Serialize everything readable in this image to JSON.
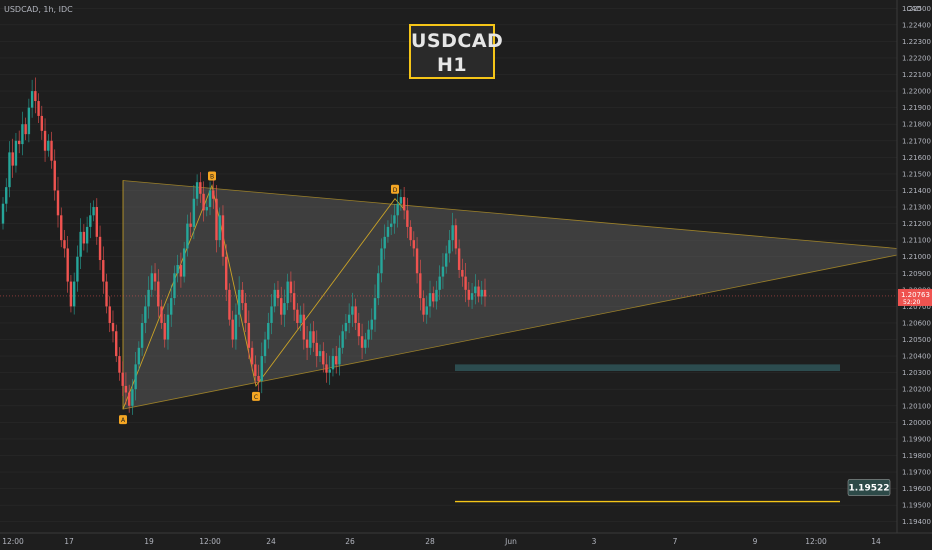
{
  "header": {
    "symbol_info": "USDCAD, 1h, IDC"
  },
  "title_box": {
    "line1": "USDCAD",
    "line2": "H1"
  },
  "colors": {
    "background": "#1e1e1e",
    "bull_candle": "#26a69a",
    "bear_candle": "#ef5350",
    "triangle_fill": "#5a5a5a",
    "pattern_line": "#c9a227",
    "label_badge": "#f5a623",
    "target_line": "#f5c518",
    "zone": "#2f5558",
    "price_badge": "#ef5350",
    "target_badge": "#2d4a48"
  },
  "chart_data": {
    "type": "candlestick",
    "symbol": "USDCAD",
    "timeframe": "1h",
    "source": "IDC",
    "currency": "CAD",
    "y_range": [
      1.1935,
      1.2255
    ],
    "y_ticks": [
      "1.19400",
      "1.19500",
      "1.19600",
      "1.19700",
      "1.19800",
      "1.19900",
      "1.20000",
      "1.20100",
      "1.20200",
      "1.20300",
      "1.20400",
      "1.20500",
      "1.20600",
      "1.20700",
      "1.20800",
      "1.20900",
      "1.21000",
      "1.21100",
      "1.21200",
      "1.21300",
      "1.21400",
      "1.21500",
      "1.21600",
      "1.21700",
      "1.21800",
      "1.21900",
      "1.22000",
      "1.22100",
      "1.22200",
      "1.22300",
      "1.22400",
      "1.22500"
    ],
    "x_ticks": [
      "12:00",
      "17",
      "19",
      "12:00",
      "24",
      "26",
      "28",
      "Jun",
      "3",
      "7",
      "9",
      "12:00",
      "14"
    ],
    "current_price": {
      "value": "1.20763",
      "countdown": "52:20"
    },
    "target": {
      "value": "1.19522"
    },
    "support_zone": {
      "from": 1.2031,
      "to": 1.2035
    },
    "pattern_points": [
      {
        "label": "A",
        "price": 1.2008
      },
      {
        "label": "B",
        "price": 1.2143
      },
      {
        "label": "C",
        "price": 1.2022
      },
      {
        "label": "D",
        "price": 1.2135
      }
    ],
    "candles": {
      "start_price": 1.212,
      "closes": [
        1.2132,
        1.2142,
        1.2163,
        1.2155,
        1.217,
        1.2168,
        1.218,
        1.2174,
        1.219,
        1.22,
        1.2194,
        1.2185,
        1.2176,
        1.2164,
        1.217,
        1.2158,
        1.214,
        1.2125,
        1.211,
        1.2105,
        1.2085,
        1.207,
        1.2085,
        1.21,
        1.2115,
        1.2108,
        1.2118,
        1.2125,
        1.213,
        1.2112,
        1.2098,
        1.2085,
        1.207,
        1.206,
        1.2055,
        1.204,
        1.203,
        1.2022,
        1.2018,
        1.201,
        1.202,
        1.2035,
        1.2045,
        1.206,
        1.207,
        1.208,
        1.209,
        1.2085,
        1.207,
        1.206,
        1.205,
        1.2065,
        1.2075,
        1.209,
        1.2095,
        1.2088,
        1.2105,
        1.212,
        1.2118,
        1.2135,
        1.2145,
        1.2138,
        1.2128,
        1.213,
        1.214,
        1.2135,
        1.211,
        1.2125,
        1.21,
        1.208,
        1.2062,
        1.205,
        1.2065,
        1.208,
        1.2072,
        1.206,
        1.2045,
        1.2035,
        1.2028,
        1.2025,
        1.204,
        1.205,
        1.206,
        1.207,
        1.208,
        1.2075,
        1.2065,
        1.2072,
        1.2085,
        1.2078,
        1.2068,
        1.206,
        1.2065,
        1.205,
        1.2045,
        1.2055,
        1.2048,
        1.204,
        1.2043,
        1.2035,
        1.203,
        1.2032,
        1.204,
        1.2035,
        1.2045,
        1.2055,
        1.206,
        1.2065,
        1.207,
        1.206,
        1.2052,
        1.2045,
        1.205,
        1.2056,
        1.2062,
        1.2075,
        1.209,
        1.2105,
        1.2112,
        1.2118,
        1.212,
        1.2125,
        1.2132,
        1.2136,
        1.2128,
        1.2118,
        1.211,
        1.2105,
        1.209,
        1.2075,
        1.2065,
        1.207,
        1.2078,
        1.2073,
        1.208,
        1.2088,
        1.2094,
        1.2102,
        1.211,
        1.2119,
        1.2105,
        1.2092,
        1.2088,
        1.208,
        1.2074,
        1.2078,
        1.2082,
        1.2076,
        1.208,
        1.2076
      ]
    }
  }
}
